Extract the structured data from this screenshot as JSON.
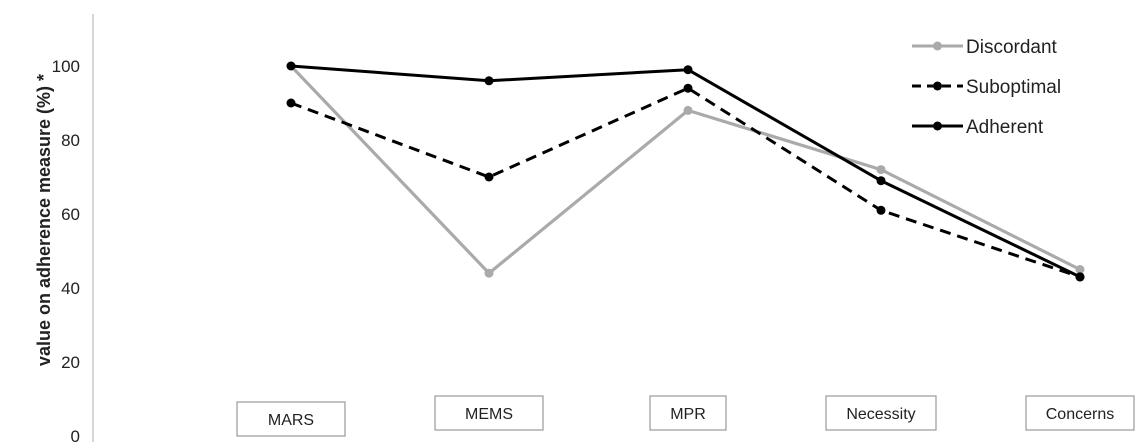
{
  "chart_data": {
    "type": "line",
    "title": "",
    "xlabel": "",
    "ylabel": "value on adherence measure (%) *",
    "categories": [
      "MARS",
      "MEMS",
      "MPR",
      "Necessity",
      "Concerns"
    ],
    "yticks": [
      "0",
      "20",
      "40",
      "60",
      "80",
      "100"
    ],
    "ylim": [
      0,
      115
    ],
    "grid": false,
    "legend_position": "top-right",
    "series": [
      {
        "name": "Discordant",
        "values": [
          100,
          44,
          88,
          72,
          45
        ],
        "color": "#aaaaaa",
        "dash": "solid"
      },
      {
        "name": "Suboptimal",
        "values": [
          90,
          70,
          94,
          61,
          43
        ],
        "color": "#000000",
        "dash": "dashed"
      },
      {
        "name": "Adherent",
        "values": [
          100,
          96,
          99,
          69,
          43
        ],
        "color": "#000000",
        "dash": "solid"
      }
    ]
  }
}
